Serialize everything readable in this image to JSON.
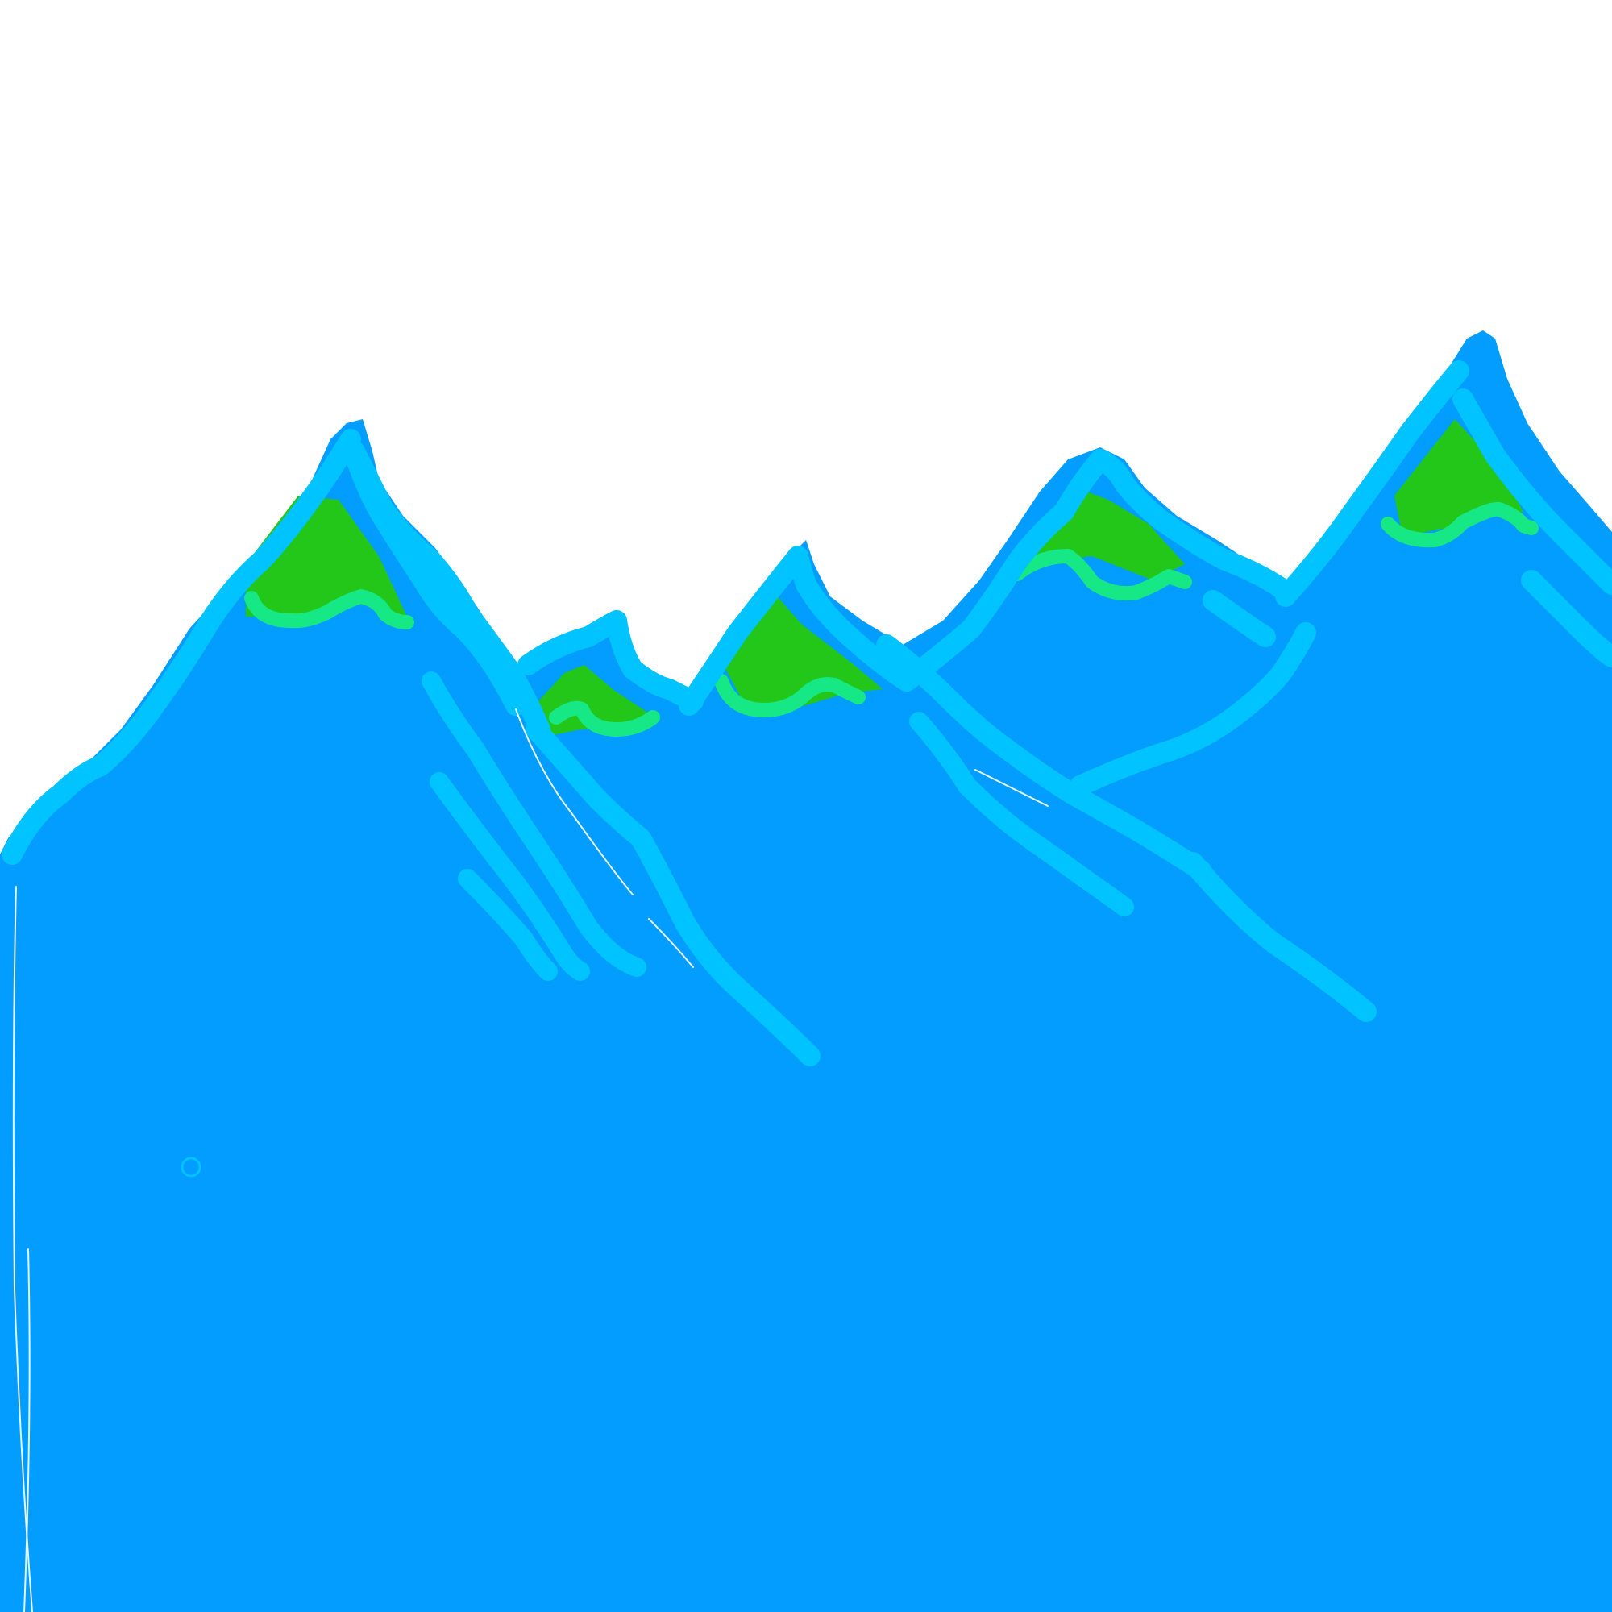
{
  "scene": {
    "description_icon": "mountain-range-drawing",
    "colors": {
      "background": "#ffffff",
      "mountain_fill": "#039cff",
      "ridge_outline": "#00c3ff",
      "peak_cap": "#23c719",
      "cap_edge": "#15e885",
      "thin_line": "#e8f6ff"
    },
    "peak_count": 5
  }
}
